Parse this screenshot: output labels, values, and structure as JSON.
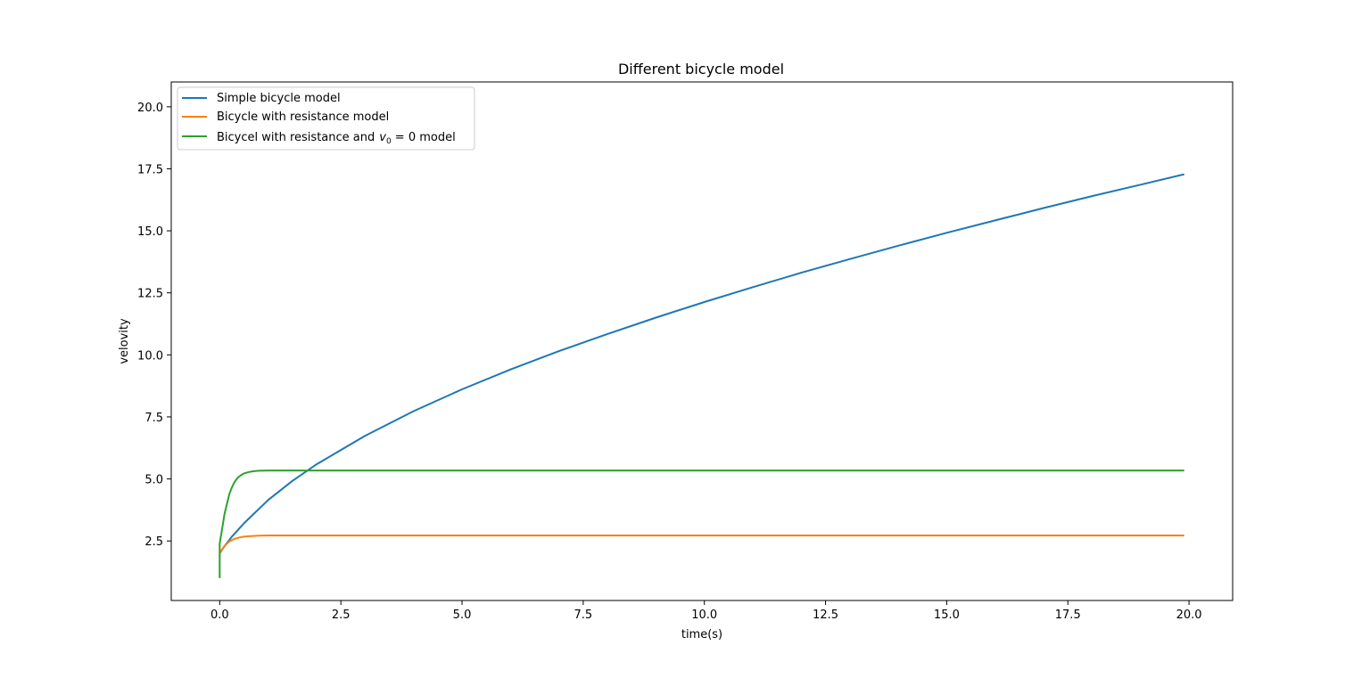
{
  "chart_data": {
    "type": "line",
    "title": "Different bicycle model",
    "xlabel": "time(s)",
    "ylabel": "velovity",
    "xlim": [
      -1.0,
      20.9
    ],
    "ylim": [
      0.1,
      21.0
    ],
    "xticks": [
      0.0,
      2.5,
      5.0,
      7.5,
      10.0,
      12.5,
      15.0,
      17.5,
      20.0
    ],
    "xtick_labels": [
      "0.0",
      "2.5",
      "5.0",
      "7.5",
      "10.0",
      "12.5",
      "15.0",
      "17.5",
      "20.0"
    ],
    "yticks": [
      2.5,
      5.0,
      7.5,
      10.0,
      12.5,
      15.0,
      17.5,
      20.0
    ],
    "ytick_labels": [
      "2.5",
      "5.0",
      "7.5",
      "10.0",
      "12.5",
      "15.0",
      "17.5",
      "20.0"
    ],
    "grid": false,
    "legend_position": "upper-left",
    "series": [
      {
        "name": "Simple bicycle model",
        "color": "#1f77b4",
        "x": [
          0.0,
          0.1,
          0.25,
          0.5,
          1.0,
          1.5,
          2.0,
          3.0,
          4.0,
          5.0,
          6.0,
          7.0,
          8.0,
          9.0,
          10.0,
          11.0,
          12.0,
          13.0,
          14.0,
          15.0,
          16.0,
          17.0,
          18.0,
          19.0,
          19.9
        ],
        "y": [
          2.0,
          2.29,
          2.67,
          3.21,
          4.15,
          4.92,
          5.59,
          6.74,
          7.73,
          8.61,
          9.41,
          10.15,
          10.84,
          11.5,
          12.13,
          12.73,
          13.31,
          13.86,
          14.4,
          14.92,
          15.42,
          15.92,
          16.4,
          16.86,
          17.28
        ]
      },
      {
        "name": "Bicycle with resistance model",
        "color": "#ff7f0e",
        "x": [
          0.0,
          0.05,
          0.1,
          0.2,
          0.3,
          0.4,
          0.5,
          0.6,
          0.8,
          1.0,
          1.5,
          2.0,
          5.0,
          10.0,
          15.0,
          19.9
        ],
        "y": [
          2.0,
          2.17,
          2.3,
          2.48,
          2.58,
          2.64,
          2.67,
          2.69,
          2.71,
          2.72,
          2.72,
          2.72,
          2.72,
          2.72,
          2.72,
          2.72
        ]
      },
      {
        "name": "Bicycel with resistance and $v_0 = 0$ model",
        "legend_text": "Bicycel with resistance and",
        "legend_math_var": "v",
        "legend_math_sub": "0",
        "legend_math_rest": " = 0 model",
        "color": "#2ca02c",
        "x": [
          0.0,
          0.0,
          0.05,
          0.1,
          0.15,
          0.2,
          0.25,
          0.3,
          0.35,
          0.4,
          0.5,
          0.6,
          0.7,
          0.8,
          1.0,
          1.5,
          2.0,
          5.0,
          10.0,
          15.0,
          19.9
        ],
        "y": [
          1.0,
          2.4,
          3.0,
          3.6,
          4.0,
          4.4,
          4.65,
          4.85,
          5.0,
          5.1,
          5.22,
          5.28,
          5.31,
          5.33,
          5.34,
          5.34,
          5.34,
          5.34,
          5.34,
          5.34,
          5.34
        ]
      }
    ]
  }
}
